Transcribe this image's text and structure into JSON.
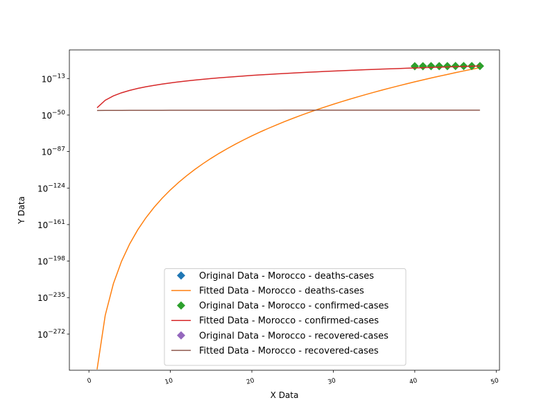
{
  "chart_data": {
    "type": "line",
    "x_label": "X Data",
    "y_label": "Y Data",
    "yscale": "log",
    "xlim": [
      -2.4,
      50.4
    ],
    "ylim": [
      2.5e-309,
      1e+16
    ],
    "xticks": [
      0,
      10,
      20,
      30,
      40,
      50
    ],
    "yticks": [
      {
        "value": 1e-13,
        "label": "10−13"
      },
      {
        "value": 1e-50,
        "label": "10−50"
      },
      {
        "value": 1e-87,
        "label": "10−87"
      },
      {
        "value": 1e-124,
        "label": "10−124"
      },
      {
        "value": 1e-161,
        "label": "10−161"
      },
      {
        "value": 1e-198,
        "label": "10−198"
      },
      {
        "value": 1e-235,
        "label": "10−235"
      },
      {
        "value": 1e-272,
        "label": "10−272"
      }
    ],
    "legend": "lower center",
    "series": [
      {
        "name": "Original Data - Morocco - deaths-cases",
        "style": "marker",
        "color": "#1f77b4",
        "x": [],
        "values": []
      },
      {
        "name": "Fitted Data - Morocco - deaths-cases",
        "style": "line",
        "color": "#ff7f0e",
        "x": [
          1,
          2,
          3,
          4,
          5,
          6,
          7,
          8,
          9,
          10,
          11,
          12,
          13,
          14,
          15,
          16,
          17,
          18,
          19,
          20,
          21,
          22,
          23,
          24,
          25,
          26,
          27,
          28,
          29,
          30,
          31,
          32,
          33,
          34,
          35,
          36,
          37,
          38,
          39,
          40,
          41,
          42,
          43,
          44,
          45,
          46,
          47,
          48
        ],
        "values": [
          1.7e-308,
          1e-253,
          1.1e-221,
          5.8e-199,
          2.4e-181,
          6.2e-167,
          9.1e-155,
          3.2e-144,
          6.6e-135,
          1.4e-126,
          4.7e-119,
          3.5e-112,
          7.4e-106,
          5.4e-100,
          1.5e-94,
          1.9e-89,
          1.1e-84,
          3.8e-80,
          7.1e-76,
          7.9e-72,
          5.8e-68,
          2.7e-64,
          8.7e-61,
          2e-57,
          3.4e-54,
          4.3e-51,
          4.1e-48,
          3e-45,
          1.8e-42,
          8.5e-40,
          3.4e-37,
          1.1e-34,
          2.9e-32,
          6.8e-30,
          1.3e-27,
          2.2e-25,
          3.2e-23,
          4.1e-21,
          4.6e-19,
          4.6e-17,
          4.1e-15,
          3.3e-13,
          2.3e-11,
          1.5e-09,
          9.3e-08,
          5e-06,
          0.00025,
          0.011
        ]
      },
      {
        "name": "Original Data - Morocco - confirmed-cases",
        "style": "marker",
        "color": "#2ca02c",
        "x": [
          40,
          41,
          42,
          43,
          44,
          45,
          46,
          47,
          48
        ],
        "values": [
          0.3,
          0.33,
          0.36,
          0.38,
          0.4,
          0.43,
          0.45,
          0.48,
          0.5
        ]
      },
      {
        "name": "Fitted Data - Morocco - confirmed-cases",
        "style": "line",
        "color": "#d62728",
        "x": [
          1,
          2,
          3,
          4,
          5,
          6,
          7,
          8,
          9,
          10,
          11,
          12,
          13,
          14,
          15,
          16,
          17,
          18,
          19,
          20,
          21,
          22,
          23,
          24,
          25,
          26,
          27,
          28,
          29,
          30,
          31,
          32,
          33,
          34,
          35,
          36,
          37,
          38,
          39,
          40,
          41,
          42,
          43,
          44,
          45,
          46,
          47,
          48
        ],
        "values": [
          2.5e-43,
          9.5e-36,
          2.6e-31,
          3.5e-28,
          9.8e-26,
          9.5e-24,
          4.7e-22,
          1.3e-20,
          2.6e-19,
          3.7e-18,
          4.1e-17,
          3.6e-16,
          2.7e-15,
          1.8e-14,
          1e-13,
          5.1e-13,
          2.3e-12,
          9.8e-12,
          3.8e-11,
          1.4e-10,
          4.8e-10,
          1.5e-09,
          4.7e-09,
          1.4e-08,
          3.8e-08,
          1e-07,
          2.6e-07,
          6.6e-07,
          1.6e-06,
          3.8e-06,
          8.5e-06,
          1.9e-05,
          4.2e-05,
          8.7e-05,
          0.00018,
          0.00037,
          0.00074,
          0.0014,
          0.0028,
          0.0052,
          0.0098,
          0.018,
          0.032,
          0.058,
          0.1,
          0.18,
          0.3,
          0.51
        ]
      },
      {
        "name": "Original Data - Morocco - recovered-cases",
        "style": "marker",
        "color": "#9467bd",
        "x": [],
        "values": []
      },
      {
        "name": "Fitted Data - Morocco - recovered-cases",
        "style": "line",
        "color": "#8c564b",
        "x": [
          1,
          2,
          3,
          4,
          5,
          6,
          7,
          8,
          9,
          10,
          11,
          12,
          13,
          14,
          15,
          16,
          17,
          18,
          19,
          20,
          21,
          22,
          23,
          24,
          25,
          26,
          27,
          28,
          29,
          30,
          31,
          32,
          33,
          34,
          35,
          36,
          37,
          38,
          39,
          40,
          41,
          42,
          43,
          44,
          45,
          46,
          47,
          48
        ],
        "values": [
          4e-46,
          4.7e-46,
          5.2e-46,
          5.5e-46,
          5.8e-46,
          6.1e-46,
          6.3e-46,
          6.5e-46,
          6.7e-46,
          6.8e-46,
          7e-46,
          7.1e-46,
          7.2e-46,
          7.4e-46,
          7.5e-46,
          7.6e-46,
          7.7e-46,
          7.8e-46,
          7.9e-46,
          8e-46,
          8e-46,
          8.1e-46,
          8.2e-46,
          8.3e-46,
          8.4e-46,
          8.4e-46,
          8.5e-46,
          8.6e-46,
          8.6e-46,
          8.7e-46,
          8.8e-46,
          8.8e-46,
          8.9e-46,
          8.9e-46,
          9e-46,
          9.1e-46,
          9.1e-46,
          9.2e-46,
          9.2e-46,
          9.3e-46,
          9.3e-46,
          9.4e-46,
          9.4e-46,
          9.5e-46,
          9.5e-46,
          9.6e-46,
          9.6e-46,
          9.7e-46
        ]
      }
    ]
  }
}
